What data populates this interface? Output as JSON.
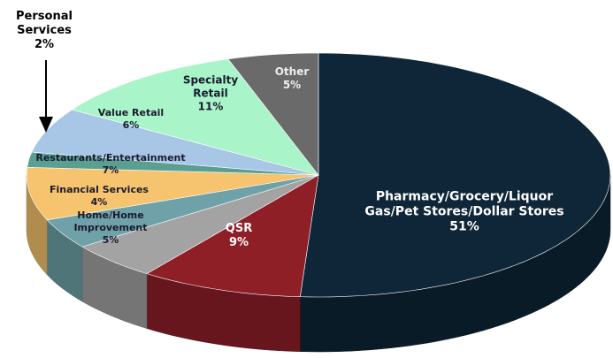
{
  "chart_data": {
    "type": "pie3d",
    "categories": [
      "Pharmacy/Grocery/Liquor Gas/Pet Stores/Dollar Stores",
      "QSR",
      "Home/Home Improvement",
      "Financial Services",
      "Restaurants/Entertainment",
      "Personal Services",
      "Value Retail",
      "Specialty Retail",
      "Other"
    ],
    "values": [
      51,
      9,
      5,
      4,
      7,
      2,
      6,
      11,
      5
    ],
    "value_labels": [
      "51%",
      "9%",
      "5%",
      "4%",
      "7%",
      "2%",
      "6%",
      "11%",
      "5%"
    ],
    "colors": [
      "#0e2637",
      "#8e1f27",
      "#a3a3a3",
      "#6fa2a8",
      "#f6c36e",
      "#5b9f92",
      "#a8c6e6",
      "#a9f5c9",
      "#6a6a6a"
    ]
  }
}
